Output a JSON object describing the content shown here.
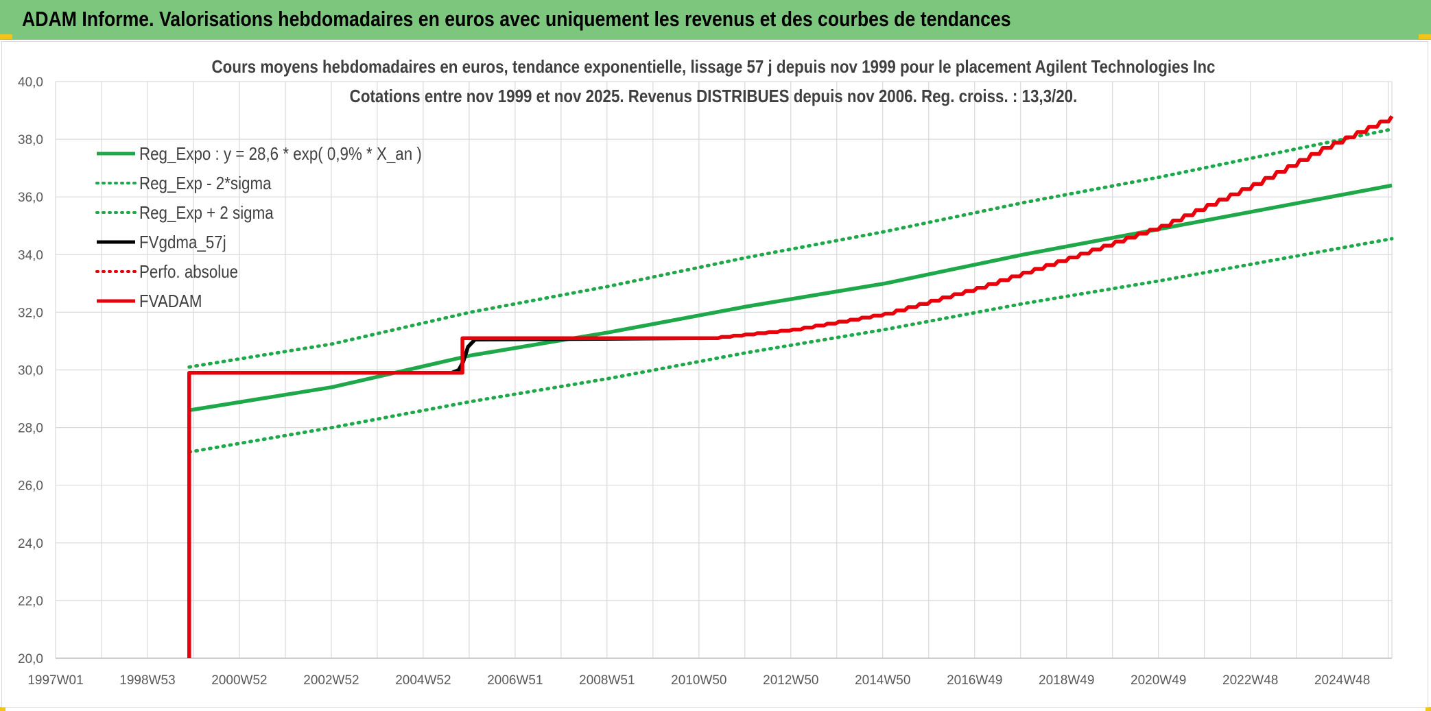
{
  "banner": {
    "title": "ADAM Informe. Valorisations hebdomadaires en euros avec uniquement les revenus et des courbes de tendances"
  },
  "colors": {
    "banner": "#7dc67d",
    "green": "#1ea84a",
    "black": "#000000",
    "red": "#e8000b",
    "grid": "#d9d9d9"
  },
  "chart_data": {
    "type": "line",
    "title": "Cours moyens hebdomadaires en euros, tendance exponentielle, lissage 57 j depuis nov 1999 pour le placement Agilent Technologies Inc",
    "subtitle": "Cotations entre nov 1999 et nov 2025. Revenus DISTRIBUES depuis nov 2006. Reg. croiss. : 13,3/20.",
    "xlabel": "",
    "ylabel": "",
    "x_tick_labels": [
      "1997W01",
      "1998W53",
      "2000W52",
      "2002W52",
      "2004W52",
      "2006W51",
      "2008W51",
      "2010W50",
      "2012W50",
      "2014W50",
      "2016W49",
      "2018W49",
      "2020W49",
      "2022W48",
      "2024W48"
    ],
    "x_range": [
      1997.0,
      2026.0
    ],
    "ylim": [
      20,
      40
    ],
    "y_ticks": [
      "20,0",
      "22,0",
      "24,0",
      "26,0",
      "28,0",
      "30,0",
      "32,0",
      "34,0",
      "36,0",
      "38,0",
      "40,0"
    ],
    "y_tick_values": [
      20,
      22,
      24,
      26,
      28,
      30,
      32,
      34,
      36,
      38,
      40
    ],
    "grid": true,
    "legend_position": "top-left",
    "series": [
      {
        "name": "Reg_Expo : y = 28,6 * exp( 0,9% *  X_an )",
        "style": "solid",
        "color": "#1ea84a",
        "points": [
          [
            1999.9,
            28.6
          ],
          [
            2003.0,
            29.4
          ],
          [
            2006.0,
            30.5
          ],
          [
            2009.0,
            31.3
          ],
          [
            2012.0,
            32.2
          ],
          [
            2015.0,
            33.0
          ],
          [
            2018.0,
            34.0
          ],
          [
            2021.0,
            34.9
          ],
          [
            2026.0,
            36.4
          ]
        ]
      },
      {
        "name": "Reg_Exp - 2*sigma",
        "style": "dotted",
        "color": "#1ea84a",
        "points": [
          [
            1999.9,
            27.15
          ],
          [
            2003.0,
            28.0
          ],
          [
            2006.0,
            28.9
          ],
          [
            2009.0,
            29.7
          ],
          [
            2012.0,
            30.6
          ],
          [
            2015.0,
            31.4
          ],
          [
            2018.0,
            32.3
          ],
          [
            2021.0,
            33.1
          ],
          [
            2026.0,
            34.55
          ]
        ]
      },
      {
        "name": "Reg_Exp + 2 sigma",
        "style": "dotted",
        "color": "#1ea84a",
        "points": [
          [
            1999.9,
            30.1
          ],
          [
            2003.0,
            30.9
          ],
          [
            2006.0,
            32.0
          ],
          [
            2009.0,
            32.9
          ],
          [
            2012.0,
            33.9
          ],
          [
            2015.0,
            34.8
          ],
          [
            2018.0,
            35.8
          ],
          [
            2021.0,
            36.7
          ],
          [
            2026.0,
            38.35
          ]
        ]
      },
      {
        "name": "FVgdma_57j",
        "style": "solid",
        "color": "#000000",
        "points": [
          [
            1999.9,
            29.9
          ],
          [
            2005.6,
            29.9
          ],
          [
            2005.75,
            30.0
          ],
          [
            2005.85,
            30.3
          ],
          [
            2005.95,
            30.8
          ],
          [
            2006.1,
            31.05
          ],
          [
            2011.2,
            31.1
          ]
        ]
      },
      {
        "name": "Perfo. absolue",
        "style": "dotted",
        "color": "#e8000b",
        "points": []
      },
      {
        "name": "FVADAM",
        "style": "solid",
        "color": "#e8000b",
        "points": [
          [
            1999.9,
            20.0
          ],
          [
            1999.9,
            29.9
          ],
          [
            2005.83,
            29.9
          ],
          [
            2005.83,
            31.1
          ],
          [
            2011.2,
            31.1
          ],
          [
            2013.0,
            31.4
          ],
          [
            2015.0,
            31.95
          ],
          [
            2017.0,
            32.85
          ],
          [
            2019.0,
            33.9
          ],
          [
            2021.0,
            35.0
          ],
          [
            2023.0,
            36.45
          ],
          [
            2024.5,
            37.7
          ],
          [
            2026.0,
            38.8
          ]
        ]
      }
    ]
  }
}
